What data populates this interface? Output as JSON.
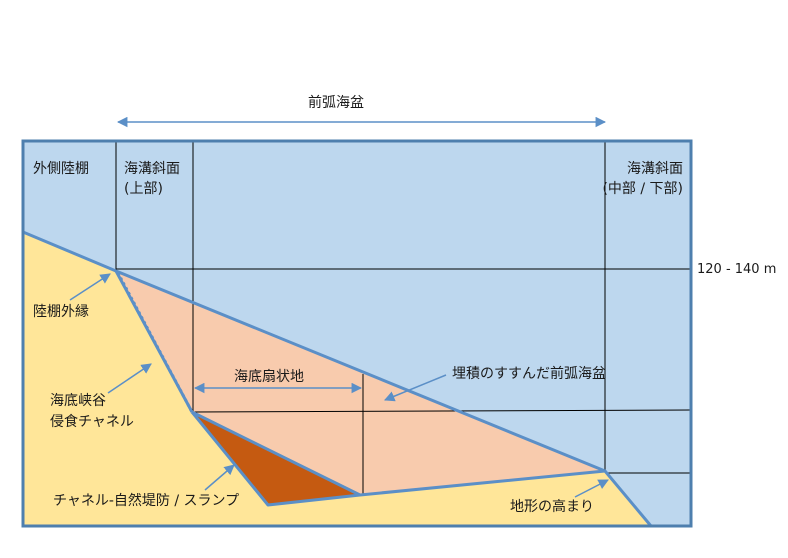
{
  "title": "前弧海盆",
  "labels": {
    "outer_shelf": "外側陸棚",
    "upper_slope_line1": "海溝斜面",
    "upper_slope_line2": "(上部)",
    "mid_slope_line1": "海溝斜面",
    "mid_slope_line2": "(中部 / 下部)",
    "depth": "120 - 140 m",
    "shelf_edge": "陸棚外縁",
    "canyon_line1": "海底峡谷",
    "canyon_line2": "侵食チャネル",
    "fan": "海底扇状地",
    "filled_basin": "埋積のすすんだ前弧海盆",
    "channel_levee": "チャネル-自然堤防 / スランプ",
    "topographic_high": "地形の高まり"
  },
  "colors": {
    "sea": "#bdd7ee",
    "land": "#ffe699",
    "basin_fill": "#f8cbad",
    "channel_levee": "#c55a11",
    "outline": "#5b8fc7",
    "grid_line": "#000000"
  }
}
